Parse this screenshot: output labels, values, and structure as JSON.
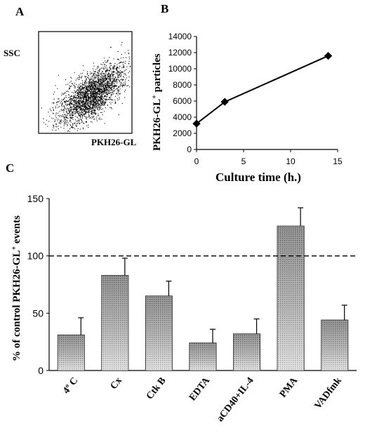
{
  "panel_labels": {
    "a": "A",
    "b": "B",
    "c": "C"
  },
  "chart_data": [
    {
      "panel": "A",
      "type": "scatter",
      "xlabel": "PKH26-GL",
      "ylabel": "SSC",
      "grid": false
    },
    {
      "panel": "B",
      "type": "line",
      "xlabel": "Culture time (h.)",
      "ylabel_main": "PKH26-GL",
      "ylabel_sup": "+",
      "ylabel_tail": " particles",
      "x": [
        0,
        3,
        14
      ],
      "y": [
        3200,
        5900,
        11600
      ],
      "xlim": [
        0,
        15
      ],
      "ylim": [
        0,
        14000
      ],
      "xticks": [
        "0",
        "5",
        "10",
        "15"
      ],
      "yticks": [
        "0",
        "2000",
        "4000",
        "6000",
        "8000",
        "10000",
        "12000",
        "14000"
      ],
      "grid": false
    },
    {
      "panel": "C",
      "type": "bar",
      "ylabel_main": "% of control PKH26-GL",
      "ylabel_sup": "+",
      "ylabel_tail": " events",
      "categories": [
        "4º C",
        "Cx",
        "Ctk B",
        "EDTA",
        "aCD40+IL-4",
        "PMA",
        "VADfmk"
      ],
      "values": [
        31,
        83,
        65,
        24,
        32,
        126,
        44
      ],
      "errors": [
        15,
        15,
        13,
        12,
        13,
        16,
        13
      ],
      "ylim": [
        0,
        150
      ],
      "yticks": [
        "0",
        "50",
        "100",
        "150"
      ],
      "reference_line": 100,
      "grid": false
    }
  ]
}
